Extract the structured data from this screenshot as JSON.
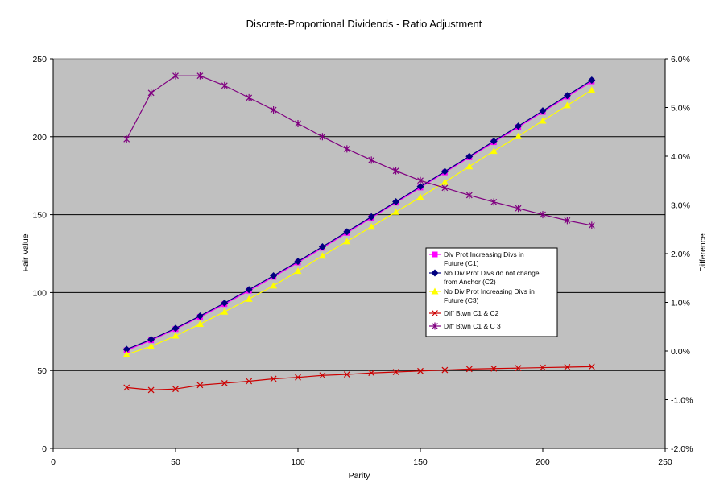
{
  "chart_data": {
    "type": "line",
    "title": "Discrete-Proportional Dividends - Ratio Adjustment",
    "xlabel": "Parity",
    "ylabel": "Fair Value",
    "y2label": "Difference",
    "xlim": [
      0,
      250
    ],
    "ylim": [
      0,
      250
    ],
    "y2lim": [
      -0.02,
      0.06
    ],
    "x_ticks": [
      0,
      50,
      100,
      150,
      200,
      250
    ],
    "x_tick_labels": [
      "0",
      "50",
      "100",
      "150",
      "200",
      "250"
    ],
    "y_ticks": [
      0,
      50,
      100,
      150,
      200,
      250
    ],
    "y_tick_labels": [
      "0",
      "50",
      "100",
      "150",
      "200",
      "250"
    ],
    "y2_ticks": [
      -0.02,
      -0.01,
      0.0,
      0.01,
      0.02,
      0.03,
      0.04,
      0.05,
      0.06
    ],
    "y2_tick_labels": [
      "-2.0%",
      "-1.0%",
      "0.0%",
      "1.0%",
      "2.0%",
      "3.0%",
      "4.0%",
      "5.0%",
      "6.0%"
    ],
    "grid": "horizontal",
    "legend_position": "right-middle",
    "x": [
      30,
      40,
      50,
      60,
      70,
      80,
      90,
      100,
      110,
      120,
      130,
      140,
      150,
      160,
      170,
      180,
      190,
      200,
      210,
      220
    ],
    "series": [
      {
        "name": "Div Prot Increasing Divs in Future (C1)",
        "legend_lines": [
          "Div Prot Increasing Divs in",
          "Future (C1)"
        ],
        "axis": "left",
        "color": "#ff00ff",
        "marker": "square",
        "values": [
          63,
          69.4,
          76.6,
          84.4,
          92.6,
          101.2,
          110.1,
          119.3,
          128.7,
          138.3,
          148.0,
          157.7,
          167.4,
          177.1,
          186.8,
          196.5,
          206.2,
          215.9,
          225.7,
          235.5
        ]
      },
      {
        "name": "No Div Prot Divs do not change from Anchor (C2)",
        "legend_lines": [
          "No Div Prot Divs do not change",
          "from Anchor (C2)"
        ],
        "axis": "left",
        "color": "#000080",
        "marker": "diamond",
        "values": [
          63.6,
          69.9,
          77.1,
          85,
          93.3,
          101.9,
          110.8,
          120.0,
          129.4,
          139.0,
          148.6,
          158.3,
          168.0,
          177.7,
          187.4,
          197.1,
          206.8,
          216.6,
          226.4,
          236.3
        ]
      },
      {
        "name": "No Div Prot Increasing Divs in Future (C3)",
        "legend_lines": [
          "No Div Prot Increasing Divs in",
          "Future (C3)"
        ],
        "axis": "left",
        "color": "#ffff00",
        "marker": "triangle",
        "values": [
          60.3,
          65.5,
          72.3,
          79.8,
          87.7,
          95.9,
          104.4,
          113.8,
          123.6,
          132.8,
          142.2,
          151.7,
          161.2,
          170.9,
          180.9,
          190.8,
          200.3,
          210.2,
          220.1,
          229.9
        ]
      },
      {
        "name": "Diff Btwn C1 & C2",
        "legend_lines": [
          "Diff Btwn C1 & C2"
        ],
        "axis": "right",
        "color": "#cc0000",
        "marker": "x",
        "values": [
          -0.0075,
          -0.008,
          -0.0078,
          -0.007,
          -0.0066,
          -0.0062,
          -0.0057,
          -0.0054,
          -0.005,
          -0.0048,
          -0.0045,
          -0.0043,
          -0.0041,
          -0.0039,
          -0.0037,
          -0.0036,
          -0.0035,
          -0.0034,
          -0.0033,
          -0.0032
        ]
      },
      {
        "name": "Diff Btwn C1 & C 3",
        "legend_lines": [
          "Diff Btwn C1 & C 3"
        ],
        "axis": "right",
        "color": "#800080",
        "marker": "star",
        "values": [
          0.0435,
          0.053,
          0.0565,
          0.0565,
          0.0545,
          0.052,
          0.0495,
          0.0467,
          0.044,
          0.0415,
          0.0392,
          0.037,
          0.035,
          0.0335,
          0.032,
          0.0306,
          0.0293,
          0.028,
          0.0268,
          0.0258
        ]
      }
    ]
  }
}
